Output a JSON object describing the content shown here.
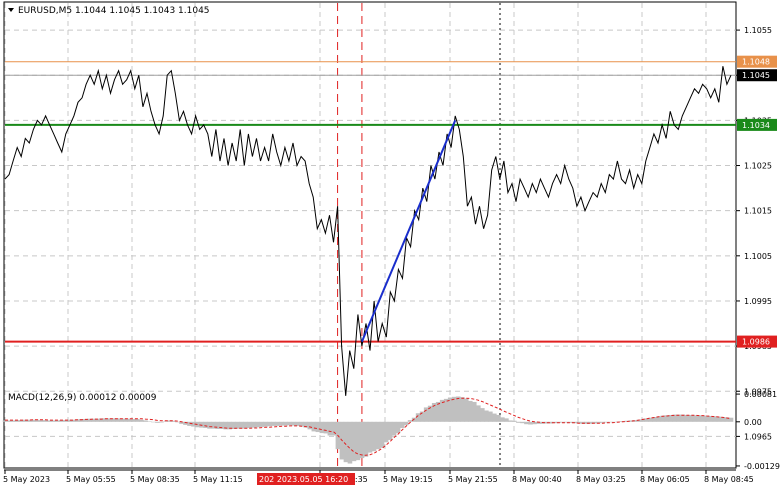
{
  "header": {
    "symbol_line": "EURUSD,M5  1.1044 1.1045 1.1043 1.1045"
  },
  "macd": {
    "label": "MACD(12,26,9) 0.00012 0.00009",
    "ticks": [
      "0.00081",
      "0.00",
      "-0.00129"
    ]
  },
  "colors": {
    "background": "#ffffff",
    "grid": "#c8c8c8",
    "price_line": "#000000",
    "resistance": "#e8914a",
    "support_upper": "#1a8a1a",
    "support_lower": "#e02020",
    "trend_line": "#1a2ecc",
    "event_lines": "#e02020",
    "histogram": "#c0c0c0",
    "signal": "#e02020"
  },
  "chart_data": [
    {
      "type": "line",
      "title": "EURUSD,M5",
      "ylim": [
        1.0958,
        1.1061
      ],
      "y_ticks": [
        "1.1055",
        "1.1045",
        "1.1035",
        "1.1025",
        "1.1015",
        "1.1005",
        "1.0995",
        "1.0985",
        "1.0975",
        "1.0965"
      ],
      "x_ticks": [
        "5 May 2023",
        "5 May 05:55",
        "5 May 08:35",
        "5 May 11:15",
        "5 May 16:35",
        "5 May 19:15",
        "5 May 21:55",
        "8 May 00:40",
        "8 May 03:25",
        "8 May 06:05",
        "8 May 08:45"
      ],
      "x_highlight": "202 2023.05.05 16:20",
      "current_price": "1.1045",
      "levels": [
        {
          "label": "1.1048",
          "value": 1.1048,
          "role": "resistance"
        },
        {
          "label": "1.1034",
          "value": 1.1034,
          "role": "support_upper"
        },
        {
          "label": "1.0986",
          "value": 1.0986,
          "role": "support_lower"
        }
      ],
      "trend_line": {
        "from_index": 88,
        "to_index": 111,
        "from_value": 1.0986,
        "to_value": 1.1035
      },
      "event_lines_at_index": [
        82,
        88
      ],
      "series": [
        {
          "values": [
            1.1022,
            1.1023,
            1.1026,
            1.1029,
            1.1027,
            1.1031,
            1.103,
            1.1033,
            1.1035,
            1.1034,
            1.1036,
            1.1034,
            1.1032,
            1.103,
            1.1028,
            1.1032,
            1.1034,
            1.1036,
            1.1039,
            1.104,
            1.1043,
            1.1045,
            1.1043,
            1.1046,
            1.1042,
            1.1045,
            1.1041,
            1.1044,
            1.1046,
            1.1043,
            1.1044,
            1.1046,
            1.1042,
            1.1045,
            1.1038,
            1.1041,
            1.1037,
            1.1034,
            1.1032,
            1.1036,
            1.1045,
            1.1046,
            1.1041,
            1.1035,
            1.1037,
            1.1034,
            1.1032,
            1.1036,
            1.1033,
            1.1034,
            1.1032,
            1.1027,
            1.1033,
            1.1026,
            1.1031,
            1.1025,
            1.103,
            1.1026,
            1.1033,
            1.1025,
            1.1032,
            1.1027,
            1.1031,
            1.1026,
            1.1029,
            1.1026,
            1.1032,
            1.1028,
            1.1025,
            1.1029,
            1.1026,
            1.103,
            1.1025,
            1.1027,
            1.1026,
            1.1021,
            1.1018,
            1.1011,
            1.1013,
            1.101,
            1.1014,
            1.1008,
            1.1016,
            1.0985,
            1.0974,
            1.0984,
            1.098,
            1.0992,
            1.0985,
            1.099,
            1.0984,
            1.0995,
            1.0986,
            1.099,
            1.0987,
            1.0997,
            1.0995,
            1.1002,
            1.1,
            1.1009,
            1.1007,
            1.1015,
            1.1013,
            1.102,
            1.1017,
            1.1025,
            1.1022,
            1.1028,
            1.1025,
            1.1032,
            1.1029,
            1.1036,
            1.1033,
            1.1027,
            1.1016,
            1.1018,
            1.1012,
            1.1016,
            1.1011,
            1.1014,
            1.1024,
            1.1027,
            1.1022,
            1.1026,
            1.1019,
            1.1021,
            1.1017,
            1.1022,
            1.102,
            1.1018,
            1.1021,
            1.1019,
            1.1022,
            1.102,
            1.1018,
            1.1021,
            1.1023,
            1.1021,
            1.1025,
            1.1022,
            1.102,
            1.1016,
            1.1018,
            1.1015,
            1.1017,
            1.1019,
            1.1018,
            1.1021,
            1.1019,
            1.1023,
            1.1022,
            1.1026,
            1.1022,
            1.1021,
            1.1024,
            1.102,
            1.1023,
            1.1021,
            1.1026,
            1.1029,
            1.1032,
            1.103,
            1.1034,
            1.1031,
            1.1037,
            1.1034,
            1.1033,
            1.1036,
            1.1038,
            1.104,
            1.1042,
            1.1041,
            1.1043,
            1.1042,
            1.104,
            1.1042,
            1.1039,
            1.1047,
            1.1043,
            1.1045
          ]
        }
      ]
    },
    {
      "type": "bar",
      "title": "MACD(12,26,9)",
      "ylim": [
        -0.00135,
        0.0009
      ],
      "series": [
        {
          "name": "MACD",
          "values": [
            4e-05,
            4e-05,
            4e-05,
            5e-05,
            5e-05,
            6e-05,
            6e-05,
            6e-05,
            6e-05,
            5e-05,
            5e-05,
            4e-05,
            4e-05,
            4e-05,
            5e-05,
            5e-05,
            6e-05,
            6e-05,
            7e-05,
            8e-05,
            8e-05,
            9e-05,
            9e-05,
            9e-05,
            0.0001,
            0.0001,
            0.0001,
            0.0001,
            0.0001,
            9e-05,
            9e-05,
            9e-05,
            8e-05,
            8e-05,
            6e-05,
            4e-05,
            1e-05,
            -1e-05,
            -3e-05,
            -2e-05,
            1e-05,
            4e-05,
            3e-05,
            -1e-05,
            -6e-05,
            -9e-05,
            -0.00012,
            -0.00014,
            -0.00016,
            -0.00017,
            -0.00018,
            -0.0002,
            -0.0002,
            -0.00021,
            -0.00021,
            -0.00022,
            -0.00022,
            -0.00021,
            -0.0002,
            -0.0002,
            -0.00019,
            -0.00018,
            -0.00017,
            -0.00016,
            -0.00015,
            -0.00014,
            -0.00013,
            -0.00012,
            -0.00012,
            -0.00011,
            -0.00011,
            -0.0001,
            -0.00011,
            -0.00012,
            -0.00014,
            -0.00017,
            -0.00022,
            -0.00028,
            -0.0003,
            -0.00033,
            -0.00034,
            -0.0004,
            -0.0004,
            -0.0008,
            -0.0011,
            -0.00118,
            -0.00122,
            -0.00115,
            -0.00112,
            -0.00106,
            -0.00102,
            -0.0009,
            -0.00086,
            -0.0008,
            -0.00076,
            -0.0006,
            -0.00053,
            -0.0004,
            -0.00033,
            -0.00018,
            -0.0001,
            5e-05,
            0.00012,
            0.00025,
            0.0003,
            0.00042,
            0.00047,
            0.00055,
            0.00058,
            0.00064,
            0.00067,
            0.00071,
            0.00073,
            0.00074,
            0.00072,
            0.00068,
            0.00061,
            0.00058,
            0.00048,
            0.0004,
            0.00033,
            0.0003,
            0.00024,
            0.0002,
            0.00013,
            0.0001,
            4e-05,
            3e-05,
            -3e-05,
            -4e-05,
            -7e-05,
            -8e-05,
            -7e-05,
            -6e-05,
            -6e-05,
            -5e-05,
            -5e-05,
            -4e-05,
            -3e-05,
            -2e-05,
            -2e-05,
            -3e-05,
            -4e-05,
            -5e-05,
            -6e-05,
            -6e-05,
            -6e-05,
            -5e-05,
            -4e-05,
            -3e-05,
            -2e-05,
            -1e-05,
            0.0,
            1e-05,
            2e-05,
            3e-05,
            4e-05,
            5e-05,
            6e-05,
            8e-05,
            0.0001,
            0.00012,
            0.00014,
            0.00016,
            0.00018,
            0.00019,
            0.0002,
            0.00021,
            0.00021,
            0.00021,
            0.0002,
            0.0002,
            0.00019,
            0.00019,
            0.00018,
            0.00018,
            0.00017,
            0.00016,
            0.00015,
            0.00014,
            0.00013,
            0.00012
          ]
        },
        {
          "name": "Signal",
          "values": [
            5e-05,
            5e-05,
            5e-05,
            5e-05,
            5e-05,
            5e-05,
            5e-05,
            6e-05,
            6e-05,
            6e-05,
            6e-05,
            5e-05,
            5e-05,
            5e-05,
            5e-05,
            5e-05,
            5e-05,
            5e-05,
            6e-05,
            6e-05,
            7e-05,
            7e-05,
            8e-05,
            8e-05,
            8e-05,
            9e-05,
            9e-05,
            9e-05,
            9e-05,
            9e-05,
            9e-05,
            9e-05,
            9e-05,
            9e-05,
            9e-05,
            8e-05,
            7e-05,
            6e-05,
            4e-05,
            3e-05,
            3e-05,
            3e-05,
            3e-05,
            2e-05,
            0.0,
            -2e-05,
            -4e-05,
            -6e-05,
            -8e-05,
            -0.0001,
            -0.00012,
            -0.00014,
            -0.00015,
            -0.00016,
            -0.00017,
            -0.00018,
            -0.00019,
            -0.00019,
            -0.00019,
            -0.00019,
            -0.00019,
            -0.00019,
            -0.00018,
            -0.00018,
            -0.00017,
            -0.00016,
            -0.00016,
            -0.00015,
            -0.00014,
            -0.00013,
            -0.00013,
            -0.00012,
            -0.00012,
            -0.00012,
            -0.00013,
            -0.00014,
            -0.00015,
            -0.00018,
            -0.0002,
            -0.00023,
            -0.00025,
            -0.00028,
            -0.0003,
            -0.0004,
            -0.00054,
            -0.00066,
            -0.00078,
            -0.00088,
            -0.00094,
            -0.00097,
            -0.00098,
            -0.00096,
            -0.00092,
            -0.00085,
            -0.00078,
            -0.00068,
            -0.00058,
            -0.00046,
            -0.00036,
            -0.00024,
            -0.00013,
            -2e-05,
            8e-05,
            0.00018,
            0.00026,
            0.00034,
            0.00041,
            0.00047,
            0.00052,
            0.00056,
            0.0006,
            0.00063,
            0.00066,
            0.00068,
            0.00069,
            0.00069,
            0.00068,
            0.00066,
            0.00063,
            0.00059,
            0.00054,
            0.00049,
            0.00044,
            0.00039,
            0.00033,
            0.00028,
            0.00023,
            0.00018,
            0.00013,
            9e-05,
            5e-05,
            2e-05,
            0.0,
            -1e-05,
            -2e-05,
            -3e-05,
            -3e-05,
            -3e-05,
            -3e-05,
            -3e-05,
            -3e-05,
            -3e-05,
            -3e-05,
            -4e-05,
            -4e-05,
            -4e-05,
            -4e-05,
            -4e-05,
            -4e-05,
            -4e-05,
            -3e-05,
            -3e-05,
            -2e-05,
            -1e-05,
            0.0,
            1e-05,
            2e-05,
            3e-05,
            5e-05,
            7e-05,
            9e-05,
            0.00011,
            0.00013,
            0.00015,
            0.00016,
            0.00017,
            0.00018,
            0.00019,
            0.00019,
            0.00019,
            0.00019,
            0.00019,
            0.00019,
            0.00018,
            0.00018,
            0.00017,
            0.00016,
            0.00015,
            0.00014,
            0.00013,
            0.00011,
            9e-05
          ]
        }
      ]
    }
  ]
}
